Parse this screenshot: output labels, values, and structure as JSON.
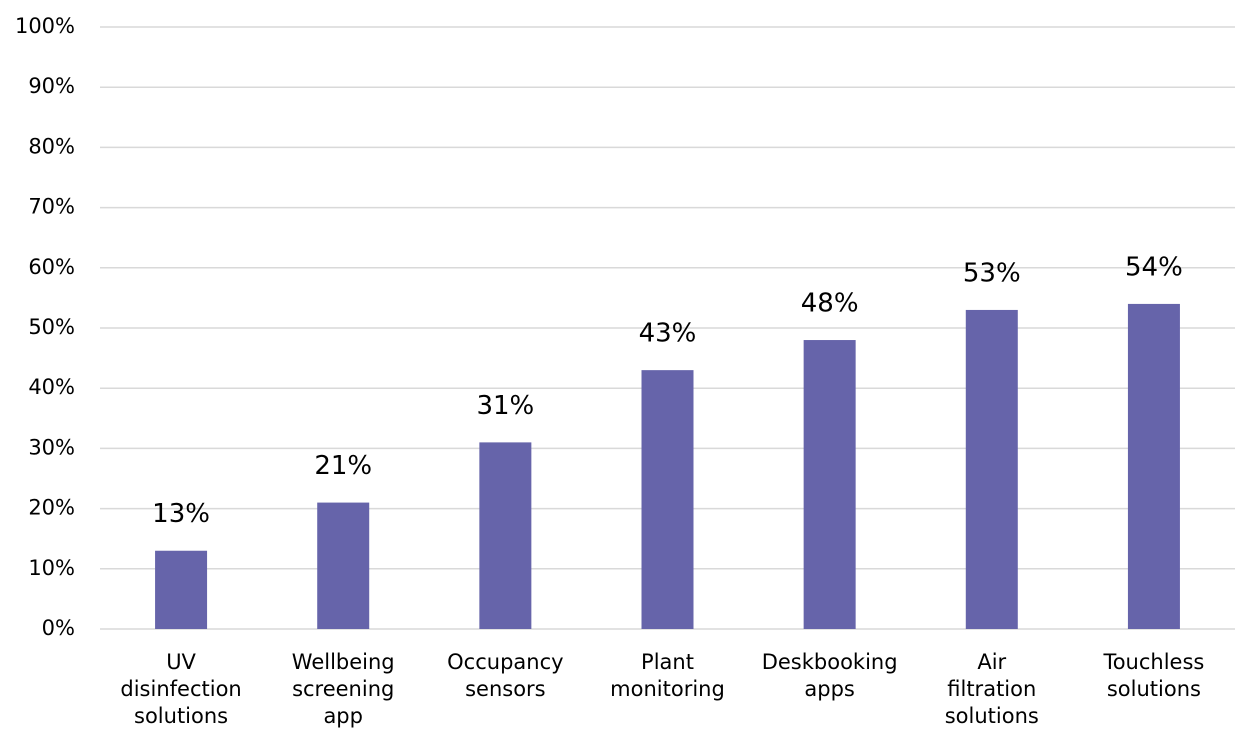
{
  "chart_data": {
    "type": "bar",
    "categories": [
      "UV disinfection solutions",
      "Wellbeing screening app",
      "Occupancy sensors",
      "Plant monitoring",
      "Deskbooking apps",
      "Air filtration solutions",
      "Touchless solutions"
    ],
    "values": [
      13,
      21,
      31,
      43,
      48,
      53,
      54
    ],
    "value_labels": [
      "13%",
      "21%",
      "31%",
      "43%",
      "48%",
      "53%",
      "54%"
    ],
    "color": "#6664aa",
    "ylim": [
      0,
      100
    ],
    "yticks": [
      {
        "value": 0,
        "label": "0%"
      },
      {
        "value": 10,
        "label": "10%"
      },
      {
        "value": 20,
        "label": "20%"
      },
      {
        "value": 30,
        "label": "30%"
      },
      {
        "value": 40,
        "label": "40%"
      },
      {
        "value": 50,
        "label": "50%"
      },
      {
        "value": 60,
        "label": "60%"
      },
      {
        "value": 70,
        "label": "70%"
      },
      {
        "value": 80,
        "label": "80%"
      },
      {
        "value": 90,
        "label": "90%"
      },
      {
        "value": 100,
        "label": "100%"
      }
    ],
    "grid": true
  }
}
